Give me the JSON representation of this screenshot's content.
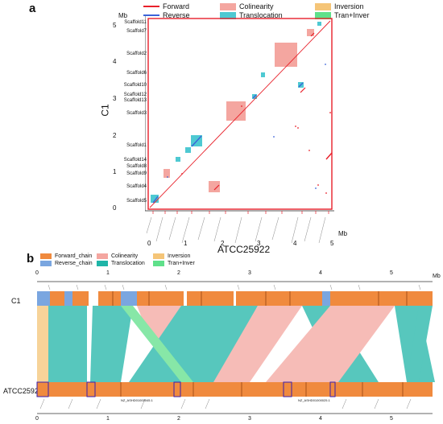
{
  "panel_a": {
    "label": "a",
    "legend": [
      {
        "label": "Forward",
        "color": "#e8202a",
        "kind": "line"
      },
      {
        "label": "Colinearity",
        "color": "#f4a6a0",
        "kind": "box"
      },
      {
        "label": "Inversion",
        "color": "#f5c578",
        "kind": "box"
      },
      {
        "label": "Reverse",
        "color": "#3b63d9",
        "kind": "line"
      },
      {
        "label": "Translocation",
        "color": "#4ec9d2",
        "kind": "box"
      },
      {
        "label": "Tran+Inver",
        "color": "#5fe08a",
        "kind": "box"
      }
    ],
    "y_unit": "Mb",
    "x_unit": "Mb",
    "y_title": "C1",
    "x_title": "ATCC25922",
    "y_ticks": [
      "0",
      "1",
      "2",
      "3",
      "4",
      "5"
    ],
    "x_ticks": [
      "0",
      "1",
      "2",
      "3",
      "4",
      "5"
    ],
    "scaffolds": [
      "Scaffold11",
      "Scaffold7",
      "Scaffold2",
      "Scaffold6",
      "Scaffold10",
      "Scaffold12",
      "Scaffold13",
      "Scaffold3",
      "Scaffold1",
      "Scaffold14",
      "Scaffold8",
      "Scaffold9",
      "Scaffold4",
      "Scaffold5"
    ]
  },
  "panel_b": {
    "label": "b",
    "legend": [
      {
        "label": "Forward_chain",
        "color": "#f08a3e"
      },
      {
        "label": "Colinearity",
        "color": "#f4a6a0"
      },
      {
        "label": "Inversion",
        "color": "#f5c578"
      },
      {
        "label": "Reverse_chain",
        "color": "#7aa6e0"
      },
      {
        "label": "Translocation",
        "color": "#1fb5a8"
      },
      {
        "label": "Tran+Inver",
        "color": "#5fe08a"
      }
    ],
    "unit": "Mb",
    "ticks": [
      "0",
      "1",
      "2",
      "3",
      "4",
      "5"
    ],
    "top_track": "C1",
    "bottom_track": "ATCC25922",
    "bottom_contig_labels": [
      "NZ_ASHD01000045.1",
      "NZ_ASHD01000025.1"
    ]
  },
  "chart_data": [
    {
      "type": "scatter",
      "title": "",
      "xlabel": "ATCC25922",
      "ylabel": "C1",
      "xlim": [
        0,
        5.1
      ],
      "ylim": [
        0,
        5.1
      ],
      "series": [
        {
          "name": "Forward",
          "x": [
            0.1,
            2.3,
            3.0,
            3.45,
            4.15,
            4.9
          ],
          "y": [
            0.1,
            2.25,
            3.0,
            3.5,
            3.25,
            5.0
          ]
        },
        {
          "name": "Reverse",
          "x": [
            0.15,
            1.25,
            1.55,
            2.3,
            4.15
          ],
          "y": [
            0.15,
            1.55,
            1.85,
            2.25,
            3.3
          ]
        }
      ]
    }
  ]
}
